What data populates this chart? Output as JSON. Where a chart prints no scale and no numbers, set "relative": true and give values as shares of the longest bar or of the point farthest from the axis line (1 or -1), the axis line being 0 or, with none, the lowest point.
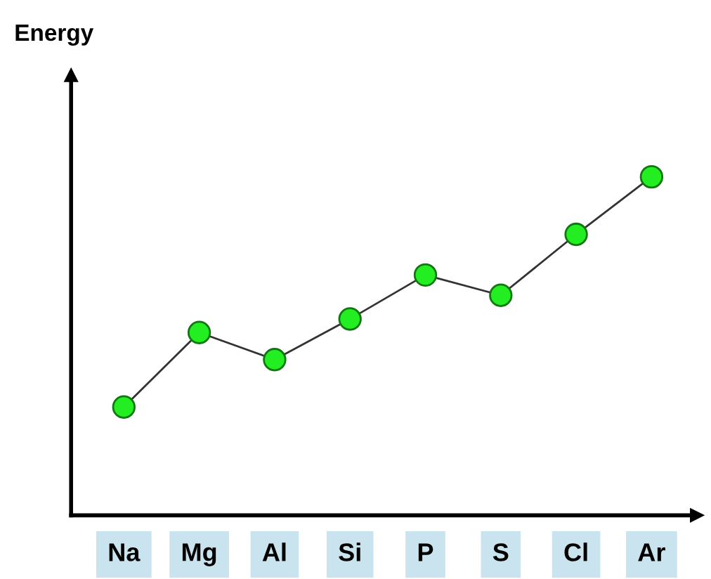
{
  "chart_data": {
    "type": "line",
    "annotations": [
      "Energy"
    ],
    "categories": [
      "Na",
      "Mg",
      "Al",
      "Si",
      "P",
      "S",
      "Cl",
      "Ar"
    ],
    "series": [
      {
        "color": "#333333",
        "values": [
          0.32,
          0.54,
          0.46,
          0.58,
          0.71,
          0.65,
          0.83,
          1.0
        ]
      }
    ],
    "relative": true,
    "marker": "circle",
    "line_style": "solid",
    "grid": false,
    "legend": false
  }
}
